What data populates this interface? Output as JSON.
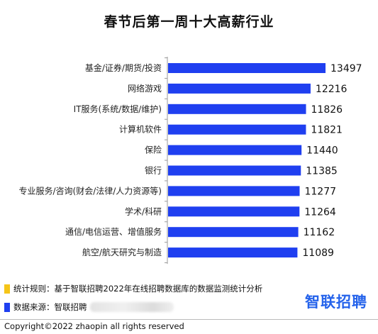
{
  "chart_data": {
    "type": "bar",
    "orientation": "horizontal",
    "title": "春节后第一周十大高薪行业",
    "categories": [
      "基金/证券/期货/投资",
      "网络游戏",
      "IT服务(系统/数据/维护)",
      "计算机软件",
      "保险",
      "银行",
      "专业服务/咨询(财会/法律/人力资源等)",
      "学术/科研",
      "通信/电信运营、增值服务",
      "航空/航天研究与制造"
    ],
    "values": [
      13497,
      12216,
      11826,
      11821,
      11440,
      11385,
      11277,
      11264,
      11162,
      11089
    ],
    "bar_color": "#1f3ff0",
    "grid": false,
    "legend": "none"
  },
  "notes": {
    "rule": "统计规则：基于智联招聘2022年在线招聘数据库的数据监测统计分析",
    "source": "数据来源：智联招聘"
  },
  "colors": {
    "note_marker_yellow": "#f5c518",
    "note_marker_blue": "#1f3ff0",
    "logo": "#2563eb"
  },
  "logo_text": "智联招聘",
  "copyright": "Copyright©2022 zhaopin all rights reserved"
}
